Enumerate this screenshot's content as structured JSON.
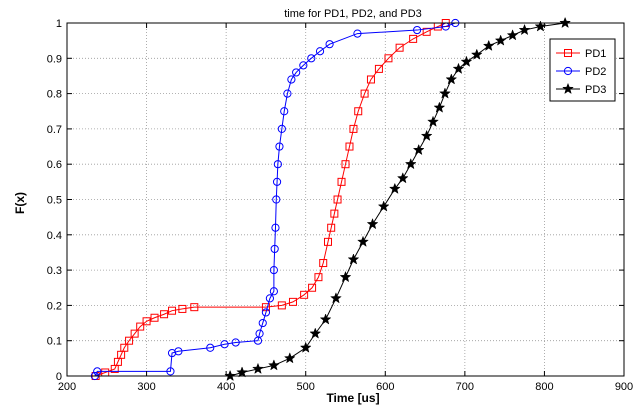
{
  "chart_data": {
    "type": "line",
    "title": "time for PD1, PD2, and PD3",
    "xlabel": "Time [us]",
    "ylabel": "F(x)",
    "xlim": [
      200,
      900
    ],
    "ylim": [
      0,
      1
    ],
    "xticks": [
      200,
      300,
      400,
      500,
      600,
      700,
      800,
      900
    ],
    "yticks": [
      0,
      0.1,
      0.2,
      0.3,
      0.4,
      0.5,
      0.6,
      0.7,
      0.8,
      0.9,
      1
    ],
    "grid": true,
    "legend_position": "top-right",
    "series": [
      {
        "name": "PD1",
        "color": "#ff0000",
        "marker": "square",
        "points": [
          [
            236,
            0.0
          ],
          [
            248,
            0.01
          ],
          [
            260,
            0.02
          ],
          [
            264,
            0.04
          ],
          [
            268,
            0.06
          ],
          [
            272,
            0.08
          ],
          [
            278,
            0.1
          ],
          [
            285,
            0.12
          ],
          [
            292,
            0.14
          ],
          [
            300,
            0.155
          ],
          [
            310,
            0.165
          ],
          [
            322,
            0.175
          ],
          [
            332,
            0.185
          ],
          [
            345,
            0.19
          ],
          [
            360,
            0.195
          ],
          [
            450,
            0.195
          ],
          [
            470,
            0.2
          ],
          [
            484,
            0.21
          ],
          [
            498,
            0.23
          ],
          [
            508,
            0.25
          ],
          [
            516,
            0.28
          ],
          [
            522,
            0.32
          ],
          [
            528,
            0.38
          ],
          [
            532,
            0.42
          ],
          [
            536,
            0.46
          ],
          [
            540,
            0.5
          ],
          [
            545,
            0.55
          ],
          [
            550,
            0.6
          ],
          [
            555,
            0.65
          ],
          [
            560,
            0.7
          ],
          [
            566,
            0.75
          ],
          [
            574,
            0.8
          ],
          [
            582,
            0.84
          ],
          [
            592,
            0.87
          ],
          [
            604,
            0.9
          ],
          [
            618,
            0.93
          ],
          [
            635,
            0.955
          ],
          [
            652,
            0.975
          ],
          [
            666,
            0.99
          ],
          [
            676,
            1.0
          ]
        ]
      },
      {
        "name": "PD2",
        "color": "#0000ff",
        "marker": "circle",
        "points": [
          [
            235,
            0.0
          ],
          [
            238,
            0.013
          ],
          [
            330,
            0.013
          ],
          [
            332,
            0.065
          ],
          [
            340,
            0.07
          ],
          [
            380,
            0.08
          ],
          [
            398,
            0.09
          ],
          [
            412,
            0.095
          ],
          [
            440,
            0.1
          ],
          [
            442,
            0.12
          ],
          [
            446,
            0.15
          ],
          [
            450,
            0.18
          ],
          [
            455,
            0.22
          ],
          [
            460,
            0.24
          ],
          [
            460,
            0.3
          ],
          [
            461,
            0.36
          ],
          [
            462,
            0.42
          ],
          [
            463,
            0.5
          ],
          [
            464,
            0.55
          ],
          [
            465,
            0.6
          ],
          [
            467,
            0.65
          ],
          [
            470,
            0.7
          ],
          [
            473,
            0.75
          ],
          [
            477,
            0.8
          ],
          [
            482,
            0.84
          ],
          [
            488,
            0.86
          ],
          [
            497,
            0.88
          ],
          [
            507,
            0.9
          ],
          [
            518,
            0.92
          ],
          [
            530,
            0.94
          ],
          [
            565,
            0.97
          ],
          [
            640,
            0.98
          ],
          [
            676,
            0.99
          ],
          [
            688,
            1.0
          ]
        ]
      },
      {
        "name": "PD3",
        "color": "#000000",
        "marker": "star",
        "points": [
          [
            405,
            0.0
          ],
          [
            420,
            0.01
          ],
          [
            440,
            0.02
          ],
          [
            460,
            0.03
          ],
          [
            480,
            0.05
          ],
          [
            500,
            0.08
          ],
          [
            512,
            0.12
          ],
          [
            525,
            0.16
          ],
          [
            538,
            0.22
          ],
          [
            550,
            0.28
          ],
          [
            560,
            0.33
          ],
          [
            572,
            0.38
          ],
          [
            584,
            0.43
          ],
          [
            598,
            0.48
          ],
          [
            612,
            0.53
          ],
          [
            622,
            0.56
          ],
          [
            632,
            0.6
          ],
          [
            642,
            0.64
          ],
          [
            652,
            0.68
          ],
          [
            660,
            0.72
          ],
          [
            668,
            0.76
          ],
          [
            675,
            0.8
          ],
          [
            683,
            0.84
          ],
          [
            692,
            0.87
          ],
          [
            702,
            0.89
          ],
          [
            715,
            0.91
          ],
          [
            730,
            0.935
          ],
          [
            745,
            0.95
          ],
          [
            760,
            0.965
          ],
          [
            775,
            0.98
          ],
          [
            795,
            0.99
          ],
          [
            826,
            1.0
          ]
        ]
      }
    ]
  }
}
